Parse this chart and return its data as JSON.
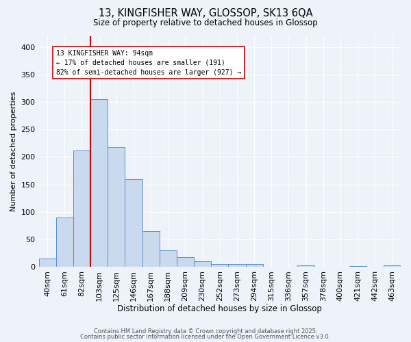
{
  "title": "13, KINGFISHER WAY, GLOSSOP, SK13 6QA",
  "subtitle": "Size of property relative to detached houses in Glossop",
  "xlabel": "Distribution of detached houses by size in Glossop",
  "ylabel": "Number of detached properties",
  "bin_labels": [
    "40sqm",
    "61sqm",
    "82sqm",
    "103sqm",
    "125sqm",
    "146sqm",
    "167sqm",
    "188sqm",
    "209sqm",
    "230sqm",
    "252sqm",
    "273sqm",
    "294sqm",
    "315sqm",
    "336sqm",
    "357sqm",
    "378sqm",
    "400sqm",
    "421sqm",
    "442sqm",
    "463sqm"
  ],
  "bar_heights": [
    15,
    90,
    212,
    305,
    218,
    160,
    65,
    30,
    18,
    10,
    5,
    5,
    6,
    0,
    0,
    3,
    0,
    0,
    2,
    0,
    3
  ],
  "bar_color": "#c9d9ee",
  "bar_edge_color": "#5b8fc9",
  "vline_color": "#cc0000",
  "annotation_text": "13 KINGFISHER WAY: 94sqm\n← 17% of detached houses are smaller (191)\n82% of semi-detached houses are larger (927) →",
  "annotation_box_color": "#ffffff",
  "annotation_box_edge": "#cc0000",
  "ylim": [
    0,
    420
  ],
  "yticks": [
    0,
    50,
    100,
    150,
    200,
    250,
    300,
    350,
    400
  ],
  "background_color": "#eef2f9",
  "grid_color": "#ffffff",
  "footer1": "Contains HM Land Registry data © Crown copyright and database right 2025.",
  "footer2": "Contains public sector information licensed under the Open Government Licence v3.0."
}
